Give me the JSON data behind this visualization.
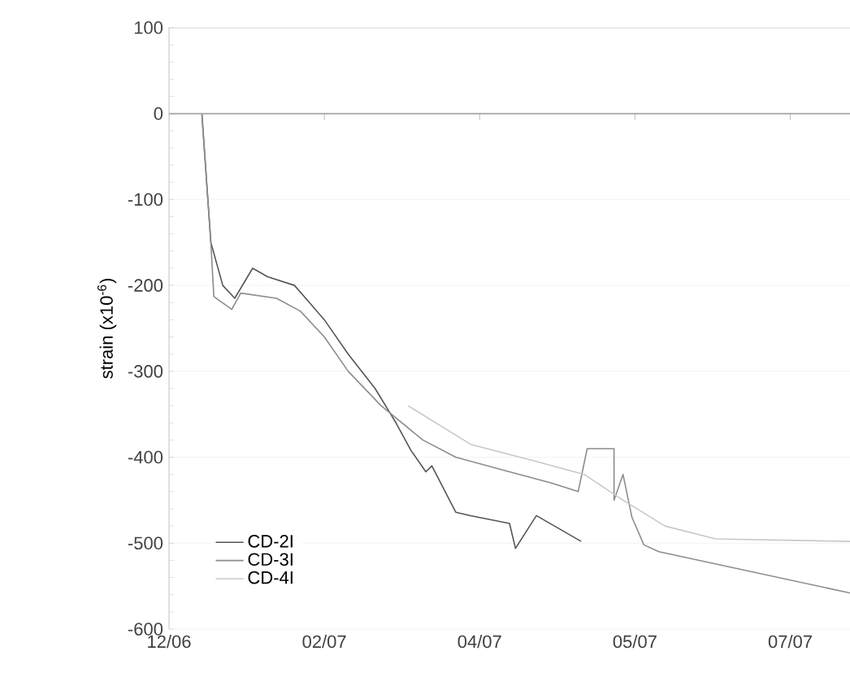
{
  "chart_data": {
    "type": "line",
    "ylabel": "strain (x10$^{-6}$)",
    "xlim": [
      "2006-12-25",
      "2007-08-10"
    ],
    "xticks": [
      {
        "value": "2006-12-25",
        "label": "12/06"
      },
      {
        "value": "2007-02-15",
        "label": "02/07"
      },
      {
        "value": "2007-04-08",
        "label": "04/07"
      },
      {
        "value": "2007-05-30",
        "label": "05/07"
      },
      {
        "value": "2007-07-21",
        "label": "07/07"
      }
    ],
    "ylim": [
      -600,
      100
    ],
    "yticks": [
      100,
      0,
      -100,
      -200,
      -300,
      -400,
      -500,
      -600
    ],
    "grid": "y",
    "legend": "bottom left",
    "marker": "none",
    "line_style": "solid",
    "ref_lines": [
      {
        "axis": "y",
        "value": 0,
        "color": "#aaaaaa"
      }
    ],
    "series": [
      {
        "name": "CD-2I",
        "color": "#555555",
        "x": [
          "2007-01-05",
          "2007-01-08",
          "2007-01-12",
          "2007-01-16",
          "2007-01-22",
          "2007-01-27",
          "2007-02-05",
          "2007-02-10",
          "2007-02-15",
          "2007-02-23",
          "2007-03-04",
          "2007-03-11",
          "2007-03-16",
          "2007-03-21",
          "2007-03-23",
          "2007-03-31",
          "2007-04-05",
          "2007-04-18",
          "2007-04-20",
          "2007-04-27",
          "2007-05-12"
        ],
        "values": [
          0,
          -150,
          -200,
          -215,
          -180,
          -190,
          -200,
          -220,
          -240,
          -280,
          -320,
          -360,
          -392,
          -417,
          -410,
          -464,
          -468,
          -477,
          -506,
          -468,
          -498
        ]
      },
      {
        "name": "CD-3I",
        "color": "#8c8c8c",
        "x": [
          "2007-01-05",
          "2007-01-08",
          "2007-01-09",
          "2007-01-15",
          "2007-01-18",
          "2007-01-30",
          "2007-02-07",
          "2007-02-15",
          "2007-02-23",
          "2007-03-06",
          "2007-03-20",
          "2007-03-31",
          "2007-04-16",
          "2007-05-02",
          "2007-05-11",
          "2007-05-14",
          "2007-05-23",
          "2007-05-23",
          "2007-05-26",
          "2007-05-29",
          "2007-06-02",
          "2007-06-07",
          "2007-08-10"
        ],
        "values": [
          0,
          -150,
          -213,
          -228,
          -209,
          -215,
          -230,
          -260,
          -300,
          -340,
          -380,
          -400,
          -415,
          -430,
          -440,
          -390,
          -390,
          -450,
          -420,
          -470,
          -502,
          -510,
          -558
        ]
      },
      {
        "name": "CD-4I",
        "color": "#c8c8c8",
        "x": [
          "2007-03-15",
          "2007-04-05",
          "2007-04-27",
          "2007-05-13",
          "2007-05-26",
          "2007-06-09",
          "2007-06-26",
          "2007-08-10"
        ],
        "values": [
          -340,
          -385,
          -405,
          -420,
          -450,
          -480,
          -495,
          -498
        ]
      }
    ]
  }
}
